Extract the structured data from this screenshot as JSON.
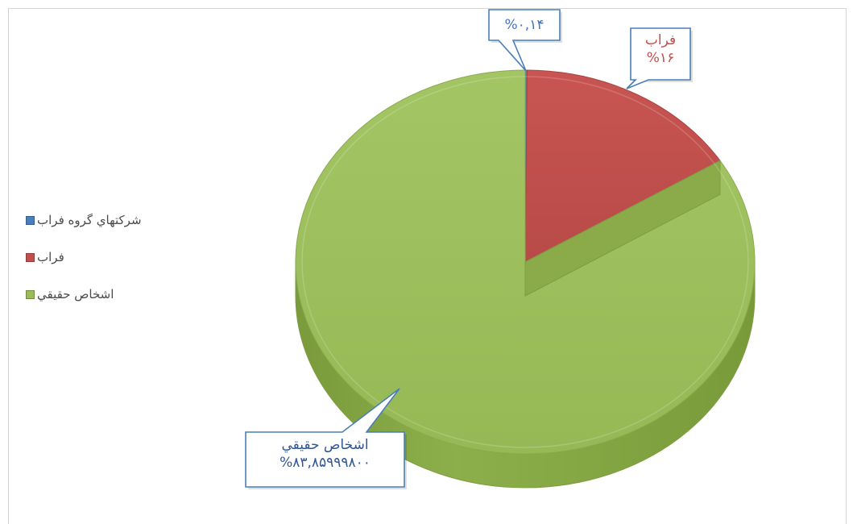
{
  "chart_data": {
    "type": "pie",
    "labels": [
      "شرکتهاي گروه فراب",
      "فراب",
      "اشخاص حقيقي"
    ],
    "values": [
      0.14,
      16,
      83.859998
    ],
    "colors": [
      "#4a7ebb",
      "#c0504d",
      "#9bbb59"
    ],
    "legend_position": "left",
    "data_labels": [
      {
        "name": "",
        "value": "%۰,۱۴"
      },
      {
        "name": "فراب",
        "value": "%۱۶"
      },
      {
        "name": "اشخاص حقيقي",
        "value": "%۸۳,۸۵۹۹۹۸۰۰"
      }
    ],
    "style": "3d"
  }
}
